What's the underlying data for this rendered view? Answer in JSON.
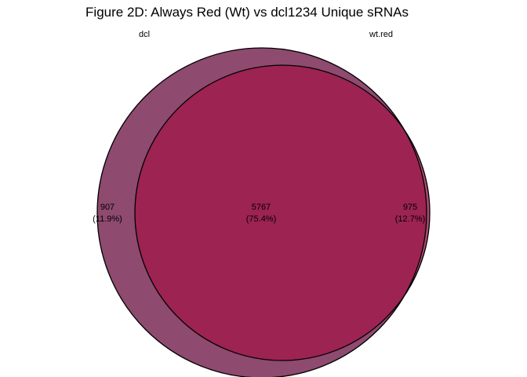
{
  "title": "Figure 2D: Always Red (Wt) vs dcl1234 Unique sRNAs",
  "sets": [
    {
      "name": "dcl",
      "color": "#8e4a6f"
    },
    {
      "name": "wt.red",
      "color": "#ad4b6f"
    }
  ],
  "overlap_color": "#9c2352",
  "regions": {
    "only_dcl": {
      "count": "907",
      "percent": "(11.9%)"
    },
    "shared": {
      "count": "5767",
      "percent": "(75.4%)"
    },
    "only_wt": {
      "count": "975",
      "percent": "(12.7%)"
    }
  }
}
